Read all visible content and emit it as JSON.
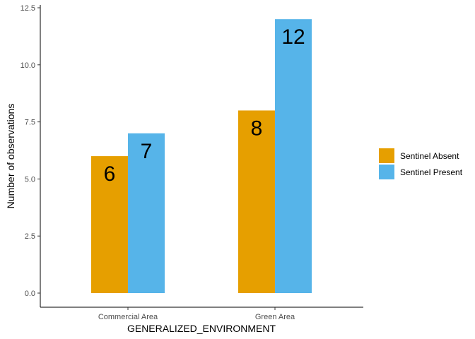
{
  "chart_data": {
    "type": "bar",
    "categories": [
      "Commercial Area",
      "Green Area"
    ],
    "series": [
      {
        "name": "Sentinel Absent",
        "values": [
          6,
          8
        ],
        "color": "#E69F00"
      },
      {
        "name": "Sentinel Present",
        "values": [
          7,
          12
        ],
        "color": "#56B4E9"
      }
    ],
    "title": "",
    "xlabel": "GENERALIZED_ENVIRONMENT",
    "ylabel": "Number of observations",
    "ylim": [
      0,
      12.5
    ],
    "yticks": [
      "0.0",
      "2.5",
      "5.0",
      "7.5",
      "10.0",
      "12.5"
    ],
    "ytick_values": [
      0,
      2.5,
      5,
      7.5,
      10,
      12.5
    ],
    "grid": false,
    "legend_position": "right"
  }
}
